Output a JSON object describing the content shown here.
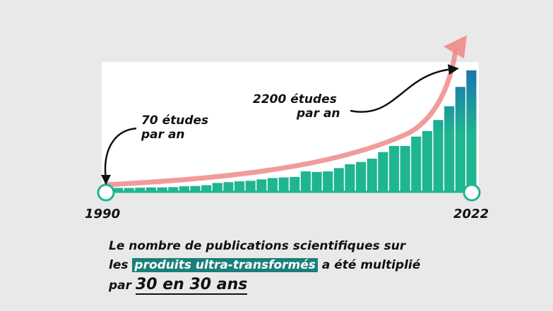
{
  "chart_data": {
    "type": "bar",
    "x_start_label": "1990",
    "x_end_label": "2022",
    "values": [
      70,
      70,
      75,
      80,
      80,
      85,
      100,
      105,
      120,
      160,
      175,
      190,
      200,
      225,
      250,
      260,
      270,
      370,
      360,
      370,
      430,
      500,
      540,
      600,
      720,
      830,
      830,
      1000,
      1100,
      1300,
      1550,
      1900,
      2200
    ],
    "ylim": [
      0,
      2350
    ],
    "annotations": [
      {
        "line1": "70 études",
        "line2": "par an"
      },
      {
        "line1": "2200 études",
        "line2": "par an"
      }
    ],
    "colors": {
      "bar_bottom": "#1fb590",
      "bar_top": "#1a6fb0",
      "trend_arrow": "#f08a8a",
      "axis_circle": "#1fb590",
      "background": "#ffffff"
    }
  },
  "caption": {
    "line1": "Le nombre de publications scientifiques sur",
    "line2_pre": "les ",
    "line2_highlight": "produits ultra-transformés",
    "line2_post": " a été multiplié",
    "line3_pre": "par ",
    "line3_big": "30 en 30 ans"
  }
}
